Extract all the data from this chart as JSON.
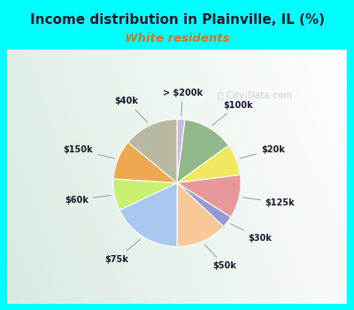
{
  "title": "Income distribution in Plainville, IL (%)",
  "subtitle": "White residents",
  "title_color": "#1a1a2e",
  "subtitle_color": "#cc7722",
  "background_outer": "#00ffff",
  "background_inner_top": "#e8f8f0",
  "background_inner_bottom": "#c8eee0",
  "watermark": "ⓘ City-Data.com",
  "labels": [
    "> $200k",
    "$100k",
    "$20k",
    "$125k",
    "$30k",
    "$50k",
    "$75k",
    "$60k",
    "$150k",
    "$40k"
  ],
  "values": [
    2,
    13,
    8,
    11,
    3,
    13,
    18,
    8,
    10,
    14
  ],
  "colors": [
    "#c8b8e8",
    "#90b888",
    "#f0e860",
    "#e89898",
    "#9898d8",
    "#f8c898",
    "#a8c8f0",
    "#c8f070",
    "#f0a850",
    "#b8b8a0"
  ]
}
